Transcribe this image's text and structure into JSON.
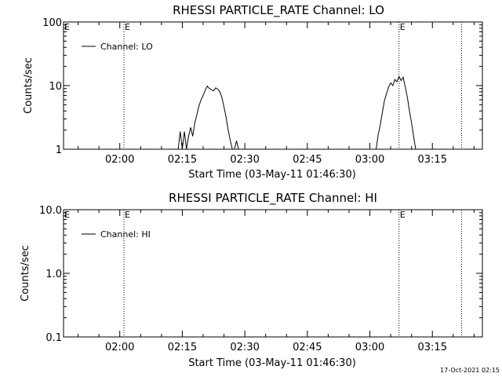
{
  "timestamp": "17-Oct-2021 02:15",
  "chart_data": [
    {
      "type": "line",
      "title": "RHESSI PARTICLE_RATE Channel: LO",
      "xlabel": "Start Time (03-May-11 01:46:30)",
      "ylabel": "Counts/sec",
      "yscale": "log",
      "ylim": [
        1,
        100
      ],
      "xlim": [
        "01:46:30",
        "03:27:00"
      ],
      "x_ticks": [
        "02:00",
        "02:15",
        "02:30",
        "02:45",
        "03:00",
        "03:15"
      ],
      "y_ticks": [
        "1",
        "10",
        "100"
      ],
      "legend": "Channel: LO",
      "legend_position": "top-left",
      "event_markers": [
        {
          "time": "02:01:00",
          "label": "E"
        },
        {
          "time": "03:07:00",
          "label": "E"
        },
        {
          "time": "03:22:00",
          "label": ""
        }
      ],
      "series": [
        {
          "name": "Channel: LO",
          "points": [
            [
              "02:14:00",
              1
            ],
            [
              "02:14:30",
              1.9
            ],
            [
              "02:15:00",
              1
            ],
            [
              "02:15:30",
              1.9
            ],
            [
              "02:16:00",
              1
            ],
            [
              "02:16:30",
              1.6
            ],
            [
              "02:17:00",
              2.2
            ],
            [
              "02:17:30",
              1.6
            ],
            [
              "02:18:00",
              2.6
            ],
            [
              "02:18:30",
              3.5
            ],
            [
              "02:19:00",
              4.8
            ],
            [
              "02:19:30",
              6.0
            ],
            [
              "02:20:00",
              7.0
            ],
            [
              "02:20:30",
              8.5
            ],
            [
              "02:21:00",
              9.8
            ],
            [
              "02:21:30",
              9.0
            ],
            [
              "02:22:00",
              8.6
            ],
            [
              "02:22:30",
              8.3
            ],
            [
              "02:23:00",
              9.2
            ],
            [
              "02:23:30",
              8.8
            ],
            [
              "02:24:00",
              8.0
            ],
            [
              "02:24:30",
              6.5
            ],
            [
              "02:25:00",
              4.6
            ],
            [
              "02:25:30",
              3.2
            ],
            [
              "02:26:00",
              2.0
            ],
            [
              "02:26:30",
              1.4
            ],
            [
              "02:27:00",
              1
            ],
            null,
            [
              "02:27:30",
              1
            ],
            [
              "02:28:00",
              1.35
            ],
            [
              "02:28:30",
              1
            ],
            null,
            [
              "03:01:30",
              1
            ],
            [
              "03:02:00",
              1.7
            ],
            [
              "03:02:30",
              2.4
            ],
            [
              "03:03:00",
              3.8
            ],
            [
              "03:03:30",
              5.8
            ],
            [
              "03:04:00",
              7.5
            ],
            [
              "03:04:30",
              9.5
            ],
            [
              "03:05:00",
              11.0
            ],
            [
              "03:05:30",
              10.0
            ],
            [
              "03:06:00",
              12.5
            ],
            [
              "03:06:30",
              11.5
            ],
            [
              "03:07:00",
              14.0
            ],
            [
              "03:07:30",
              12.0
            ],
            [
              "03:08:00",
              13.5
            ],
            [
              "03:08:30",
              9.5
            ],
            [
              "03:09:00",
              6.5
            ],
            [
              "03:09:30",
              4.0
            ],
            [
              "03:10:00",
              2.6
            ],
            [
              "03:10:30",
              1.6
            ],
            [
              "03:11:00",
              1
            ]
          ]
        }
      ]
    },
    {
      "type": "line",
      "title": "RHESSI PARTICLE_RATE Channel: HI",
      "xlabel": "Start Time (03-May-11 01:46:30)",
      "ylabel": "Counts/sec",
      "yscale": "log",
      "ylim": [
        0.1,
        10
      ],
      "xlim": [
        "01:46:30",
        "03:27:00"
      ],
      "x_ticks": [
        "02:00",
        "02:15",
        "02:30",
        "02:45",
        "03:00",
        "03:15"
      ],
      "y_ticks": [
        "0.1",
        "1.0",
        "10.0"
      ],
      "legend": "Channel: HI",
      "legend_position": "top-left",
      "event_markers": [
        {
          "time": "02:01:00",
          "label": "E"
        },
        {
          "time": "03:07:00",
          "label": "E"
        },
        {
          "time": "03:22:00",
          "label": ""
        }
      ],
      "series": [
        {
          "name": "Channel: HI",
          "points": []
        }
      ]
    }
  ]
}
